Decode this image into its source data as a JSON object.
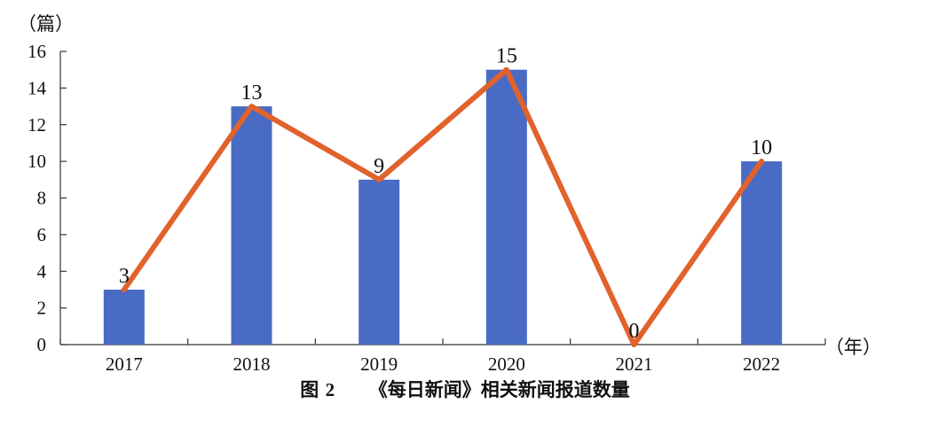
{
  "chart_data": {
    "type": "bar",
    "categories": [
      "2017",
      "2018",
      "2019",
      "2020",
      "2021",
      "2022"
    ],
    "values": [
      3,
      13,
      9,
      15,
      0,
      10
    ],
    "overlay_line": true,
    "ylim": [
      0,
      16
    ],
    "yticks": [
      "0",
      "2",
      "4",
      "6",
      "8",
      "10",
      "12",
      "14",
      "16"
    ],
    "ylabel": "（篇）",
    "xlabel": "（年）",
    "data_labels": [
      "3",
      "13",
      "9",
      "15",
      "0",
      "10"
    ],
    "colors": {
      "bar": "#4a6bc3",
      "line": "#e2622c"
    },
    "grid": false
  },
  "caption": {
    "prefix": "图",
    "number": "2",
    "text": "《每日新闻》相关新闻报道数量"
  }
}
